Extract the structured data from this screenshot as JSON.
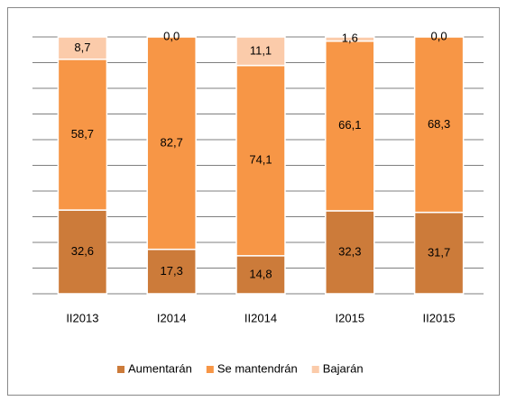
{
  "chart_data": {
    "type": "stacked_bar",
    "categories": [
      "II2013",
      "I2014",
      "II2014",
      "I2015",
      "II2015"
    ],
    "series": [
      {
        "name": "Aumentarán",
        "color": "#cc7b3a",
        "values": [
          32.6,
          17.3,
          14.8,
          32.3,
          31.7
        ],
        "value_labels": [
          "32,6",
          "17,3",
          "14,8",
          "32,3",
          "31,7"
        ]
      },
      {
        "name": "Se mantendrán",
        "color": "#f79646",
        "values": [
          58.7,
          82.7,
          74.1,
          66.1,
          68.3
        ],
        "value_labels": [
          "58,7",
          "82,7",
          "74,1",
          "66,1",
          "68,3"
        ]
      },
      {
        "name": "Bajarán",
        "color": "#fbcbaa",
        "values": [
          8.7,
          0.0,
          11.1,
          1.6,
          0.0
        ],
        "value_labels": [
          "8,7",
          "0,0",
          "11,1",
          "1,6",
          "0,0"
        ]
      }
    ],
    "ylim": [
      0,
      100
    ],
    "yticks": [
      0,
      10,
      20,
      30,
      40,
      50,
      60,
      70,
      80,
      90,
      100
    ],
    "grid": true,
    "legend": "bottom"
  }
}
